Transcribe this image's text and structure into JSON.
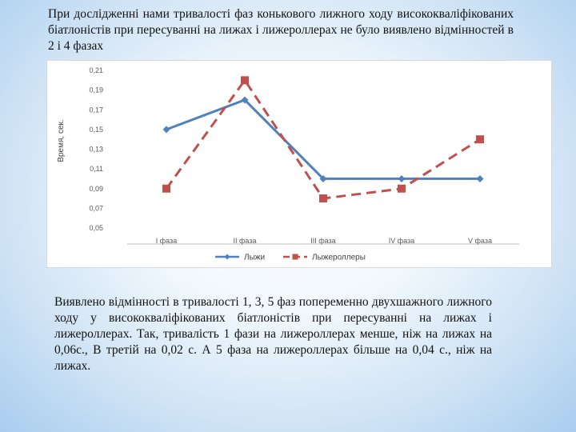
{
  "intro_text": "При дослідженні нами тривалості фаз конькового лижного ходу висококваліфікованих біатлоністів при пересуванні на лижах і лижероллерах не було виявлено відмінностей в 2 і 4 фазах",
  "conclusion_text": "Виявлено відмінності в тривалості 1, 3, 5 фаз попеременно двухшажного лижного ходу у висококваліфікованих біатлоністів при пересуванні на лижах і лижероллерах. Так, тривалість 1 фази на лижероллерах менше, ніж на лижах на 0,06с., В третій на 0,02 с. А 5 фаза на лижероллерах більше на 0,04 с., ніж на лижах.",
  "colors": {
    "skis": "#4f81bd",
    "rollerskis": "#c0504d"
  },
  "chart_data": {
    "type": "line",
    "title": "",
    "xlabel": "",
    "ylabel": "Время, сек.",
    "categories": [
      "I фаза",
      "II фаза",
      "III фаза",
      "IV фаза",
      "V фаза"
    ],
    "yticks": [
      "0,21",
      "0,19",
      "0,17",
      "0,15",
      "0,13",
      "0,11",
      "0,09",
      "0,07",
      "0,05"
    ],
    "ylim": [
      0.05,
      0.21
    ],
    "grid": false,
    "legend_position": "bottom",
    "series": [
      {
        "name": "Лыжи",
        "values": [
          0.15,
          0.18,
          0.1,
          0.1,
          0.1
        ],
        "style": "solid",
        "marker": "diamond",
        "color": "#4f81bd"
      },
      {
        "name": "Лыжероллеры",
        "values": [
          0.09,
          0.2,
          0.08,
          0.09,
          0.14
        ],
        "style": "dashed",
        "marker": "square",
        "color": "#c0504d"
      }
    ]
  }
}
